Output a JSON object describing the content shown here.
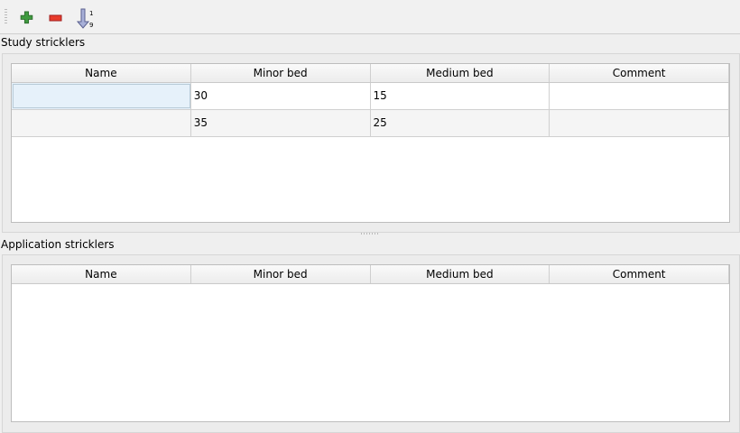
{
  "toolbar": {
    "icons": [
      "plus-icon",
      "minus-icon",
      "sort-ascending-icon"
    ]
  },
  "study": {
    "label": "Study stricklers",
    "columns": [
      "Name",
      "Minor bed",
      "Medium bed",
      "Comment"
    ],
    "rows": [
      [
        "",
        "30",
        "15",
        ""
      ],
      [
        "",
        "35",
        "25",
        ""
      ]
    ]
  },
  "application": {
    "label": "Application stricklers",
    "columns": [
      "Name",
      "Minor bed",
      "Medium bed",
      "Comment"
    ],
    "rows": []
  }
}
